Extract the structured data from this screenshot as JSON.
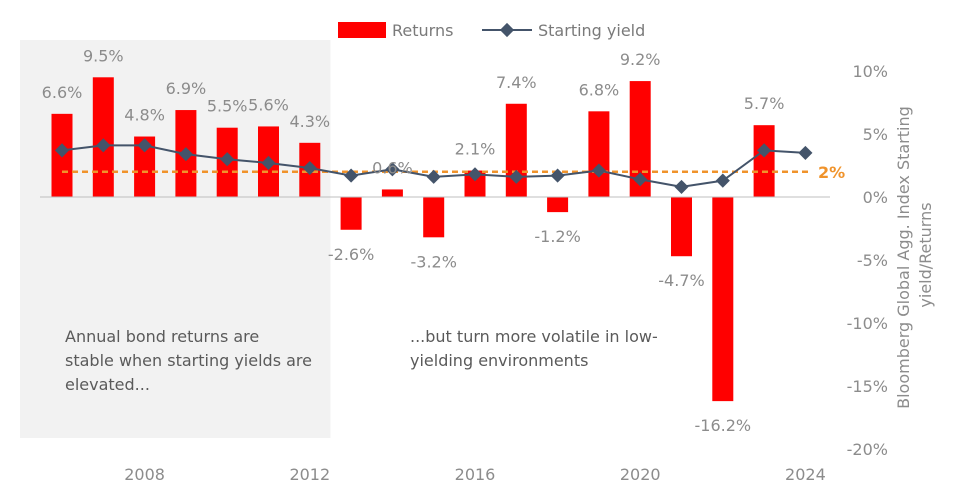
{
  "chart_data": {
    "type": "bar",
    "x": [
      2006,
      2007,
      2008,
      2009,
      2010,
      2011,
      2012,
      2013,
      2014,
      2015,
      2016,
      2017,
      2018,
      2019,
      2020,
      2021,
      2022,
      2023,
      2024
    ],
    "x_tick_labels": [
      "2008",
      "2012",
      "2016",
      "2020",
      "2024"
    ],
    "x_tick_values": [
      2008,
      2012,
      2016,
      2020,
      2024
    ],
    "series": [
      {
        "name": "Returns",
        "type": "bar",
        "color": "#ff0000",
        "values": [
          6.6,
          9.5,
          4.8,
          6.9,
          5.5,
          5.6,
          4.3,
          -2.6,
          0.6,
          -3.2,
          2.1,
          7.4,
          -1.2,
          6.8,
          9.2,
          -4.7,
          -16.2,
          5.7,
          null
        ],
        "labels": [
          "6.6%",
          "9.5%",
          "4.8%",
          "6.9%",
          "5.5%",
          "5.6%",
          "4.3%",
          "-2.6%",
          "0.6%",
          "-3.2%",
          "2.1%",
          "7.4%",
          "-1.2%",
          "6.8%",
          "9.2%",
          "-4.7%",
          "-16.2%",
          "5.7%",
          ""
        ]
      },
      {
        "name": "Starting yield",
        "type": "line",
        "color": "#44546a",
        "values": [
          3.7,
          4.1,
          4.1,
          3.4,
          3.0,
          2.7,
          2.3,
          1.7,
          2.2,
          1.6,
          1.8,
          1.6,
          1.7,
          2.1,
          1.4,
          0.8,
          1.3,
          3.7,
          3.5
        ]
      }
    ],
    "reference_line": {
      "value": 2,
      "label": "2%",
      "color": "#f0932b"
    },
    "y_axis": {
      "title": "Bloomberg Global Agg. Index Starting yield/Returns",
      "ticks": [
        10,
        5,
        0,
        -5,
        -10,
        -15,
        -20
      ],
      "tick_labels": [
        "10%",
        "5%",
        "0%",
        "-5%",
        "-10%",
        "-15%",
        "-20%"
      ],
      "ylim": [
        -20,
        11
      ],
      "side": "right"
    },
    "shaded_region": {
      "from_year": 2006,
      "to_year": 2012,
      "color": "#f2f2f2"
    },
    "annotations": {
      "left": [
        "Annual bond returns are",
        "stable when starting yields are",
        "elevated..."
      ],
      "right": [
        "...but turn more volatile in low-",
        "yielding environments"
      ]
    },
    "legend": {
      "position": "top-center"
    }
  }
}
